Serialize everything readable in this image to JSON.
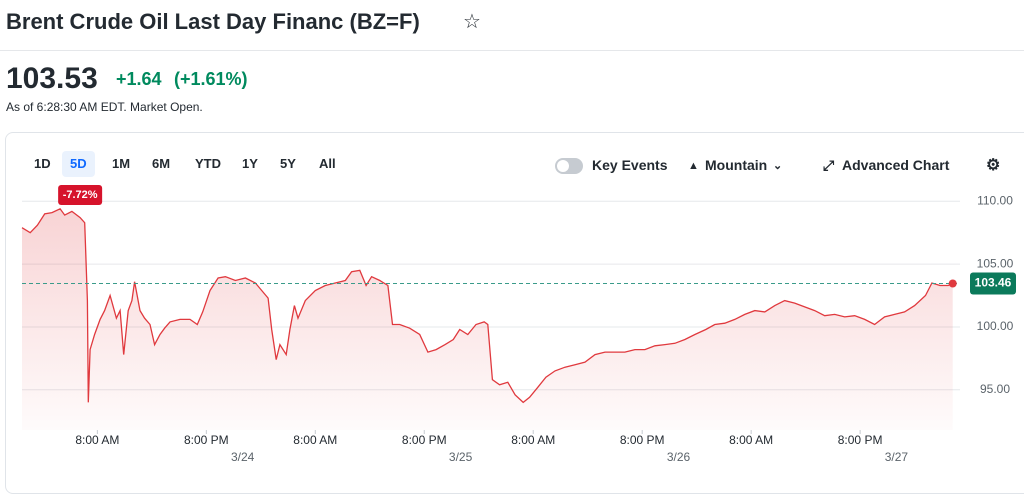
{
  "header": {
    "title": "Brent Crude Oil Last Day Financ (BZ=F)",
    "price": "103.53",
    "change": "+1.64",
    "change_pct": "(+1.61%)",
    "as_of": "As of 6:28:30 AM EDT. Market Open."
  },
  "toolbar": {
    "ranges": [
      "1D",
      "5D",
      "1M",
      "6M",
      "YTD",
      "1Y",
      "5Y",
      "All"
    ],
    "selected_range": "5D",
    "key_events": "Key Events",
    "chart_style": "Mountain",
    "advanced": "Advanced Chart"
  },
  "chart_data": {
    "type": "area",
    "color": "#e0393e",
    "badge": "-7.72%",
    "last_value": 103.46,
    "last_label": "103.46",
    "x": [
      -0.3,
      0.6,
      1.4,
      2.2,
      3.0,
      3.9,
      4.4,
      5.2,
      6.1,
      6.6,
      6.9,
      7.0,
      7.2,
      7.7,
      8.3,
      8.8,
      9.4,
      10.1,
      10.5,
      10.9,
      11.4,
      11.8,
      12.1,
      12.7,
      13.2,
      13.8,
      14.3,
      14.9,
      15.4,
      16.0,
      17.1,
      18.2,
      19.0,
      19.6,
      20.4,
      21.3,
      22.1,
      23.2,
      24.3,
      25.4,
      26.1,
      26.8,
      27.2,
      27.7,
      28.1,
      28.8,
      29.2,
      29.7,
      30.1,
      30.9,
      32.0,
      33.1,
      34.2,
      35.3,
      36.0,
      36.9,
      37.6,
      38.2,
      39.1,
      40.0,
      40.5,
      41.3,
      42.4,
      43.5,
      44.4,
      45.3,
      46.3,
      47.2,
      47.9,
      48.8,
      49.7,
      50.6,
      51.0,
      51.5,
      52.3,
      53.2,
      54.0,
      54.9,
      55.6,
      56.5,
      57.4,
      58.4,
      59.5,
      60.6,
      61.7,
      62.8,
      63.9,
      65.0,
      66.1,
      67.2,
      68.3,
      69.4,
      70.5,
      71.6,
      72.7,
      73.8,
      75.0,
      76.0,
      77.1,
      78.2,
      79.3,
      80.4,
      81.5,
      82.6,
      83.7,
      84.8,
      85.9,
      87.0,
      88.1,
      89.2,
      90.3,
      91.4,
      92.5,
      93.6,
      94.7,
      95.8,
      96.9,
      98.0,
      99.2,
      99.9,
      100.8,
      101.7,
      102.2
    ],
    "values": [
      107.9,
      107.5,
      108.1,
      109.0,
      109.1,
      109.4,
      108.9,
      109.2,
      108.7,
      108.3,
      102.1,
      94.0,
      98.2,
      99.4,
      100.6,
      101.3,
      102.5,
      100.7,
      101.3,
      97.8,
      101.3,
      102.1,
      103.6,
      101.3,
      100.7,
      100.2,
      98.6,
      99.4,
      99.9,
      100.4,
      100.6,
      100.6,
      100.2,
      101.2,
      102.9,
      103.9,
      104.0,
      103.7,
      103.9,
      103.5,
      102.9,
      102.3,
      99.8,
      97.4,
      98.6,
      97.8,
      99.8,
      101.7,
      100.7,
      102.1,
      102.9,
      103.3,
      103.5,
      103.7,
      104.4,
      104.5,
      103.3,
      104.0,
      103.7,
      103.3,
      100.2,
      100.2,
      99.9,
      99.4,
      98.0,
      98.2,
      98.6,
      99.0,
      99.8,
      99.4,
      100.2,
      100.4,
      100.2,
      95.8,
      95.4,
      95.6,
      94.6,
      94.0,
      94.4,
      95.2,
      96.0,
      96.5,
      96.8,
      97.0,
      97.2,
      97.8,
      98.0,
      98.0,
      98.0,
      98.2,
      98.2,
      98.5,
      98.6,
      98.7,
      99.0,
      99.4,
      99.8,
      100.2,
      100.3,
      100.6,
      101.0,
      101.3,
      101.2,
      101.7,
      102.1,
      101.9,
      101.6,
      101.3,
      100.9,
      101.0,
      100.8,
      100.9,
      100.6,
      100.2,
      100.8,
      101.0,
      101.2,
      101.7,
      102.5,
      103.5,
      103.3,
      103.3,
      103.46
    ],
    "xlim": [
      -0.3,
      103
    ],
    "ylim": [
      91.8,
      110.9
    ],
    "yticks": [
      {
        "value": 110,
        "label": "110.00"
      },
      {
        "value": 105,
        "label": "105.00"
      },
      {
        "value": 100,
        "label": "100.00"
      },
      {
        "value": 95,
        "label": "95.00"
      }
    ],
    "xticks": [
      {
        "value": 8,
        "label": "8:00 AM"
      },
      {
        "value": 20,
        "label": "8:00 PM"
      },
      {
        "value": 32,
        "label": "8:00 AM"
      },
      {
        "value": 44,
        "label": "8:00 PM"
      },
      {
        "value": 56,
        "label": "8:00 AM"
      },
      {
        "value": 68,
        "label": "8:00 PM"
      },
      {
        "value": 80,
        "label": "8:00 AM"
      },
      {
        "value": 92,
        "label": "8:00 PM"
      }
    ],
    "date_ticks": [
      {
        "value": 24,
        "label": "3/24"
      },
      {
        "value": 48,
        "label": "3/25"
      },
      {
        "value": 72,
        "label": "3/26"
      },
      {
        "value": 96,
        "label": "3/27"
      }
    ],
    "grid": true
  }
}
